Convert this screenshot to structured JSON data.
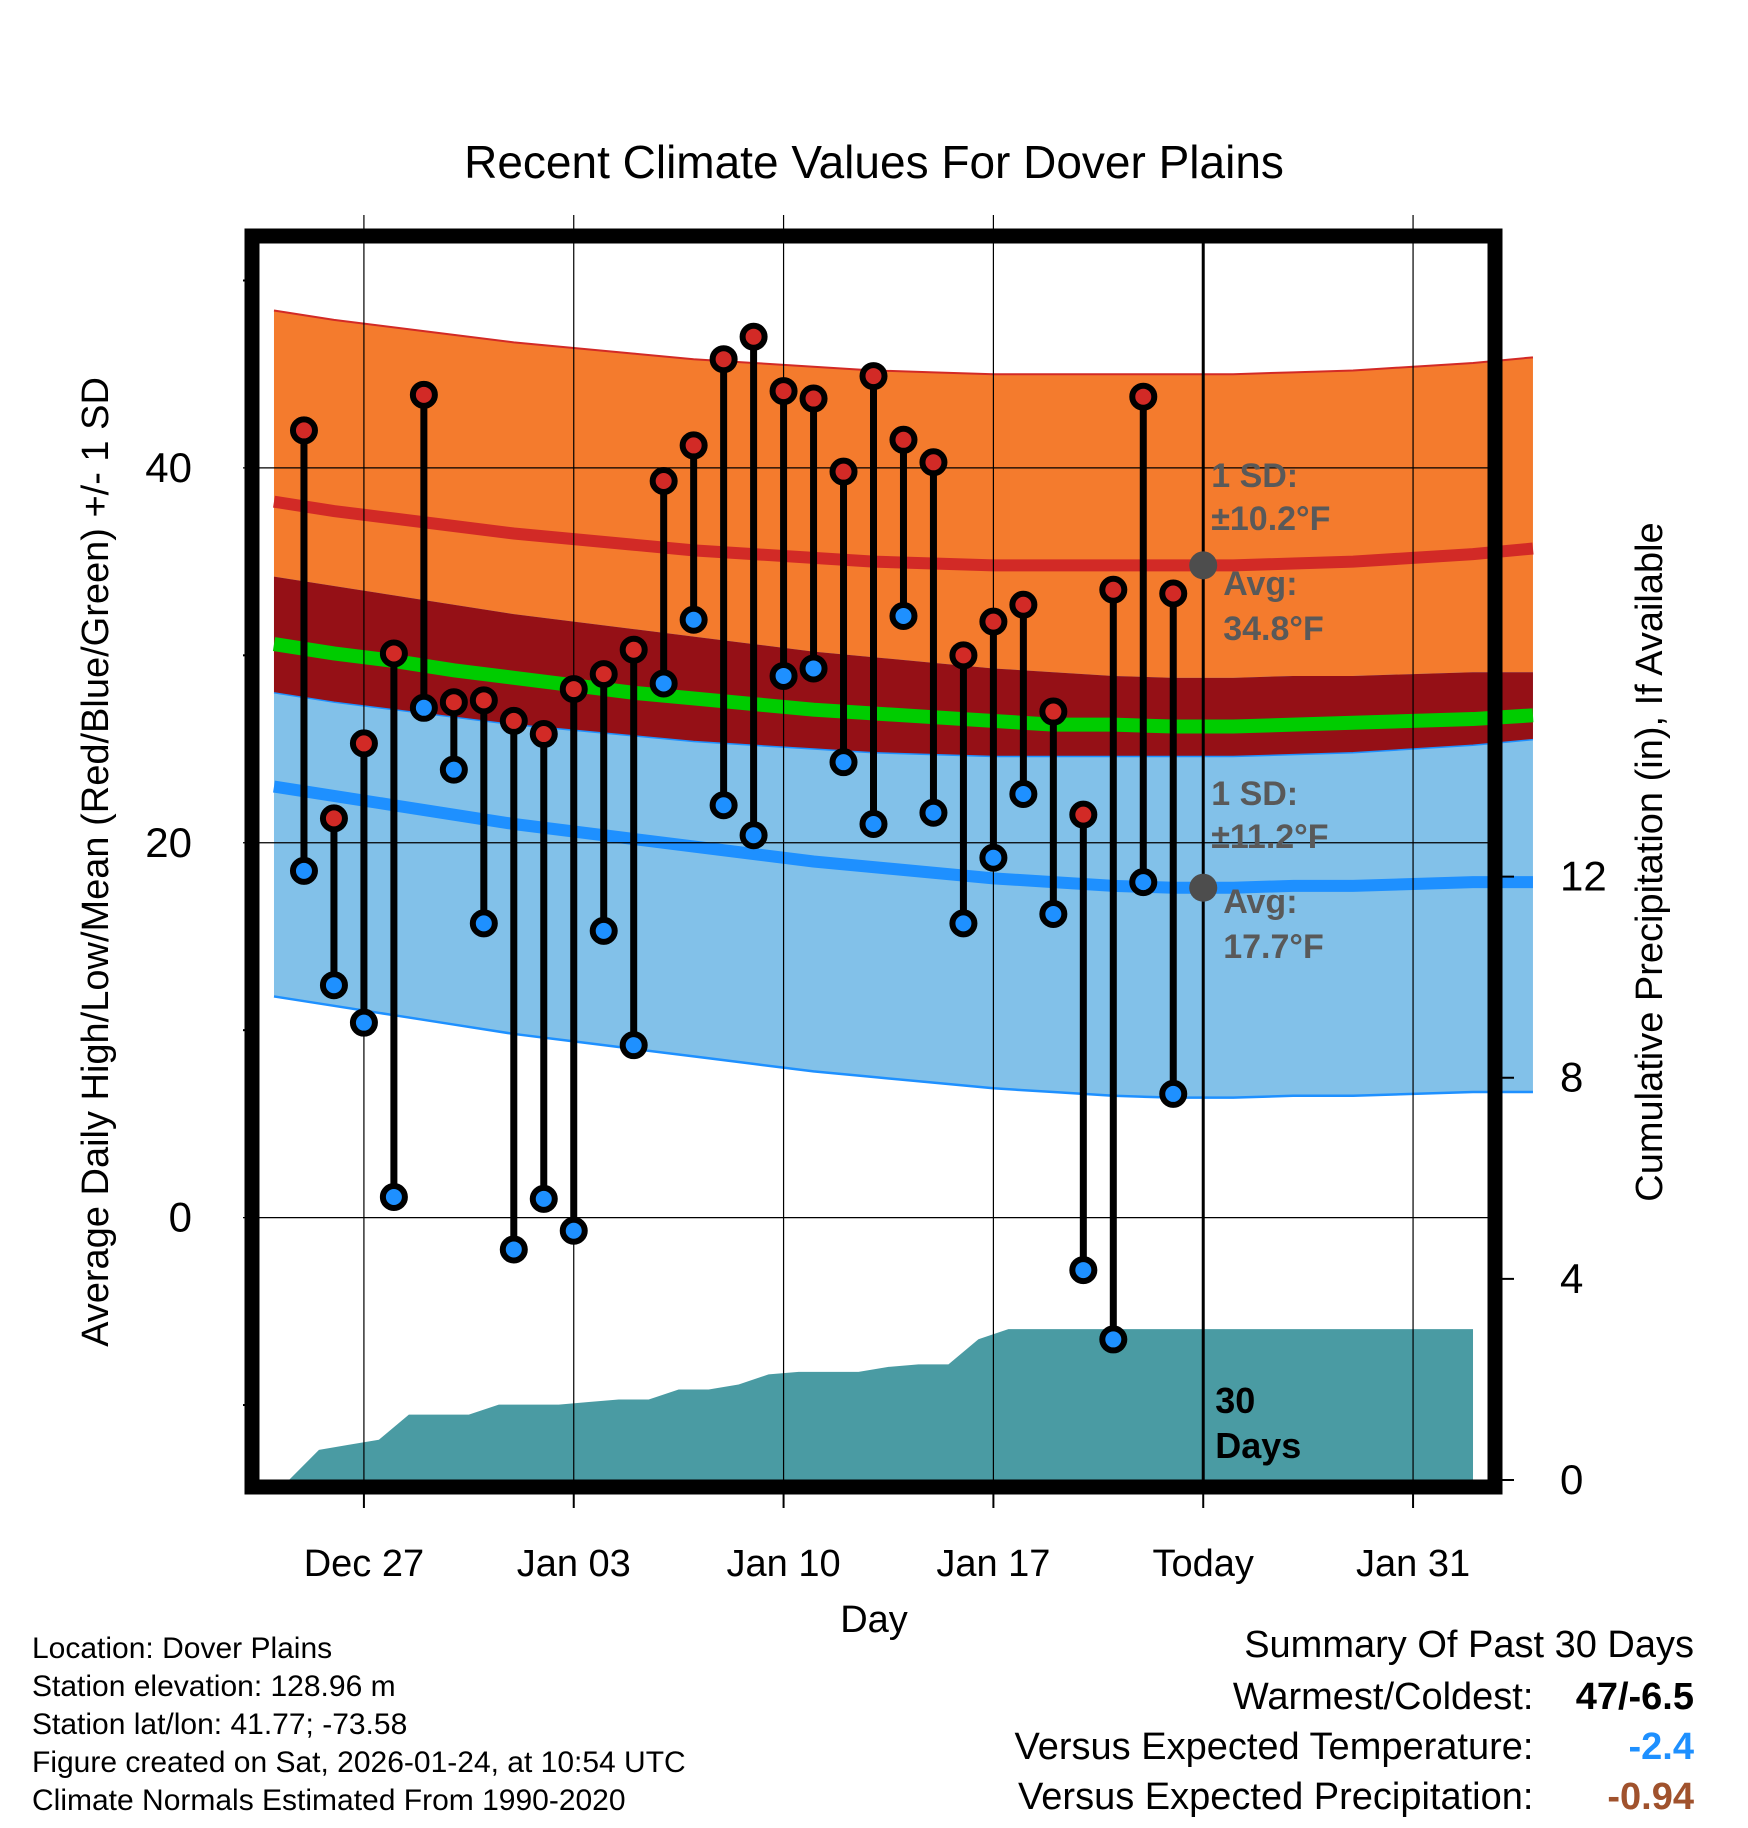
{
  "chart_data": {
    "type": "line",
    "title": "Recent Climate Values For Dover Plains",
    "xlabel": "Day",
    "ylabel": "Average Daily High/Low/Mean (Red/Blue/Green) +/- 1 SD",
    "y2label": "Cumulative Precipitation (in), If Available",
    "x_ticks": [
      {
        "day": 3,
        "label": "Dec 27"
      },
      {
        "day": 10,
        "label": "Jan 03"
      },
      {
        "day": 17,
        "label": "Jan 10"
      },
      {
        "day": 24,
        "label": "Jan 17"
      },
      {
        "day": 31,
        "label": "Today"
      },
      {
        "day": 38,
        "label": "Jan 31"
      }
    ],
    "xlim": [
      -0.5,
      40.5
    ],
    "ylim": [
      -14,
      52
    ],
    "y_ticks": [
      0,
      20,
      40
    ],
    "y_minor_ticks": [
      -10,
      10,
      30,
      50
    ],
    "y2lim": [
      0,
      24.6
    ],
    "y2_ticks": [
      0,
      4,
      8,
      12
    ],
    "today_day": 31,
    "days": [
      1,
      2,
      3,
      4,
      5,
      6,
      7,
      8,
      9,
      10,
      11,
      12,
      13,
      14,
      15,
      16,
      17,
      18,
      19,
      20,
      21,
      22,
      23,
      24,
      25,
      26,
      27,
      28,
      29,
      30
    ],
    "highs": [
      42,
      21.3,
      25.3,
      30.1,
      43.9,
      27.5,
      27.6,
      26.5,
      25.8,
      28.2,
      29,
      30.3,
      39.3,
      41.2,
      45.8,
      47,
      44.1,
      43.7,
      39.8,
      44.9,
      41.5,
      40.3,
      30,
      31.8,
      32.7,
      27,
      21.5,
      33.5,
      43.8,
      33.3
    ],
    "lows": [
      18.5,
      12.4,
      10.4,
      1.1,
      27.2,
      23.9,
      15.7,
      -1.7,
      1,
      -0.7,
      15.3,
      9.2,
      28.5,
      31.9,
      22,
      20.4,
      28.9,
      29.3,
      24.3,
      21,
      32.1,
      21.6,
      15.7,
      19.2,
      22.6,
      16.2,
      -2.8,
      -6.5,
      17.9,
      6.6
    ],
    "normal_high": [
      38.2,
      37.7,
      37.3,
      36.9,
      36.5,
      36.2,
      35.9,
      35.6,
      35.4,
      35.2,
      35,
      34.9,
      34.8,
      34.8,
      34.8,
      34.8,
      34.8,
      34.9,
      35,
      35.2,
      35.4,
      35.7
    ],
    "normal_low": [
      23,
      22.5,
      22,
      21.5,
      21,
      20.6,
      20.2,
      19.8,
      19.4,
      19,
      18.7,
      18.4,
      18.1,
      17.9,
      17.7,
      17.6,
      17.6,
      17.7,
      17.7,
      17.8,
      17.9,
      17.9
    ],
    "normal_mean": [
      30.6,
      30.1,
      29.7,
      29.2,
      28.8,
      28.4,
      28,
      27.7,
      27.4,
      27.1,
      26.9,
      26.7,
      26.5,
      26.3,
      26.3,
      26.2,
      26.2,
      26.3,
      26.4,
      26.5,
      26.6,
      26.8
    ],
    "high_sd": 10.2,
    "low_sd": 11.2,
    "normal_day_step": 2,
    "precip_cumulative": [
      0,
      0.6,
      0.7,
      0.8,
      1.3,
      1.3,
      1.3,
      1.5,
      1.5,
      1.5,
      1.55,
      1.6,
      1.6,
      1.8,
      1.8,
      1.9,
      2.1,
      2.15,
      2.15,
      2.15,
      2.25,
      2.3,
      2.3,
      2.8,
      3.0,
      3.0,
      3.0,
      3.0,
      3.0,
      3.0,
      3.0
    ],
    "precip_days": [
      0.5,
      1.5,
      2.5,
      3.5,
      4.5,
      5.5,
      6.5,
      7.5,
      8.5,
      9.5,
      10.5,
      11.5,
      12.5,
      13.5,
      14.5,
      15.5,
      16.5,
      17.5,
      18.5,
      19.5,
      20.5,
      21.5,
      22.5,
      23.5,
      24.5,
      25.5,
      26.5,
      27.5,
      28.5,
      29.5,
      30.5
    ],
    "precip_extend_to": 40,
    "annotations": {
      "high_sd_label": "1 SD:",
      "high_sd_value": "±10.2°F",
      "high_avg_label": "Avg:",
      "high_avg_value": "34.8°F",
      "low_sd_label": "1 SD:",
      "low_sd_value": "±11.2°F",
      "low_avg_label": "Avg:",
      "low_avg_value": "17.7°F",
      "window_line1": "30",
      "window_line2": "Days"
    },
    "colors": {
      "high_band": "#f47b2d",
      "high_line": "#d22a26",
      "mean_band": "#951016",
      "mean_line": "#00cc00",
      "low_band": "#82c1e9",
      "low_line": "#1e90ff",
      "precip": "#4a9ba3",
      "annotation": "#595959"
    }
  },
  "info": {
    "location": "Location: Dover Plains",
    "elevation": "Station elevation: 128.96 m",
    "latlon": "Station lat/lon: 41.77; -73.58",
    "created": "Figure created on Sat, 2026-01-24, at 10:54 UTC",
    "normals": "Climate Normals Estimated From 1990-2020"
  },
  "summary": {
    "title": "Summary Of Past 30 Days",
    "warmest_label": "Warmest/Coldest:",
    "warmest_value": "47/-6.5",
    "temp_label": "Versus Expected Temperature:",
    "temp_value": "-2.4",
    "temp_color": "#1e90ff",
    "precip_label": "Versus Expected Precipitation:",
    "precip_value": "-0.94",
    "precip_color": "#a0522d"
  }
}
